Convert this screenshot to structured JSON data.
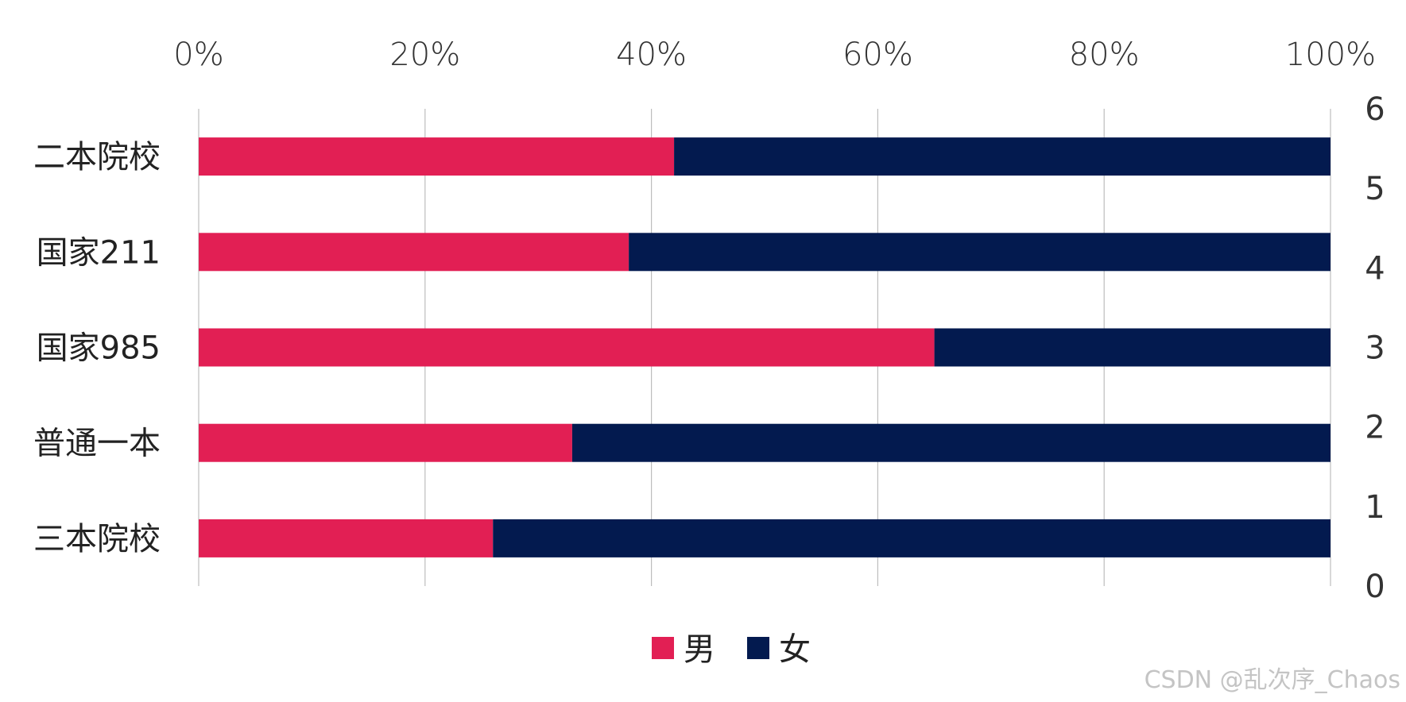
{
  "chart_data": {
    "type": "bar",
    "orientation": "horizontal",
    "stacking": "percent",
    "categories": [
      "二本院校",
      "国家211",
      "国家985",
      "普通一本",
      "三本院校"
    ],
    "series": [
      {
        "name": "男",
        "color": "#e21f54",
        "values": [
          42,
          38,
          65,
          33,
          26
        ]
      },
      {
        "name": "女",
        "color": "#031a4f",
        "values": [
          58,
          62,
          35,
          67,
          74
        ]
      }
    ],
    "x_axis": {
      "position": "top",
      "ticks": [
        "0%",
        "20%",
        "40%",
        "60%",
        "80%",
        "100%"
      ],
      "range": [
        0,
        100
      ]
    },
    "secondary_y_axis": {
      "position": "right",
      "ticks": [
        "0",
        "1",
        "2",
        "3",
        "4",
        "5",
        "6"
      ],
      "range": [
        0,
        6
      ]
    },
    "grid": true,
    "legend": "bottom"
  },
  "watermark": "CSDN @乱次序_Chaos"
}
